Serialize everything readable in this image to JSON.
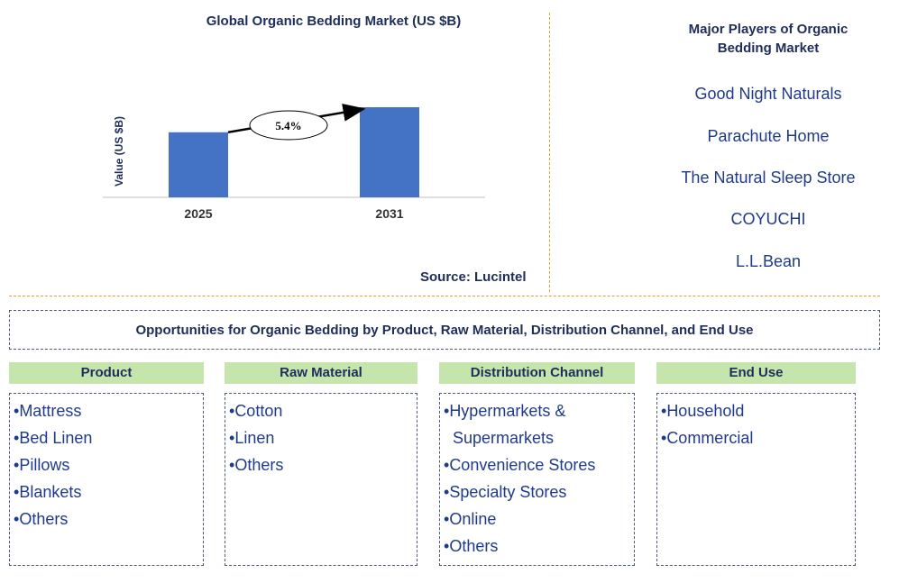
{
  "chart_data": {
    "type": "bar",
    "title": "Global Organic Bedding Market (US $B)",
    "ylabel": "Value (US $B)",
    "categories": [
      "2025",
      "2031"
    ],
    "values": [
      2.6,
      3.6
    ],
    "annotation": "5.4%",
    "bar_color": "#4472c4",
    "source": "Source: Lucintel"
  },
  "players": {
    "title": "Major Players of Organic Bedding Market",
    "items": [
      "Good Night Naturals",
      "Parachute Home",
      "The Natural Sleep Store",
      "COYUCHI",
      "L.L.Bean"
    ]
  },
  "opportunities": {
    "title": "Opportunities for Organic Bedding by Product, Raw Material, Distribution Channel, and End Use",
    "categories": [
      {
        "heading": "Product",
        "items": [
          "Mattress",
          "Bed Linen",
          "Pillows",
          "Blankets",
          "Others"
        ]
      },
      {
        "heading": "Raw Material",
        "items": [
          "Cotton",
          "Linen",
          "Others"
        ]
      },
      {
        "heading": "Distribution Channel",
        "items": [
          "Hypermarkets &",
          "Supermarkets",
          "Convenience Stores",
          "Specialty Stores",
          "Online",
          "Others"
        ]
      },
      {
        "heading": "End Use",
        "items": [
          "Household",
          "Commercial"
        ]
      }
    ]
  },
  "colors": {
    "accent": "#4472c4",
    "heading_bg": "#c6e5ad",
    "divider": "#e0a030",
    "text": "#1f2d5a"
  }
}
